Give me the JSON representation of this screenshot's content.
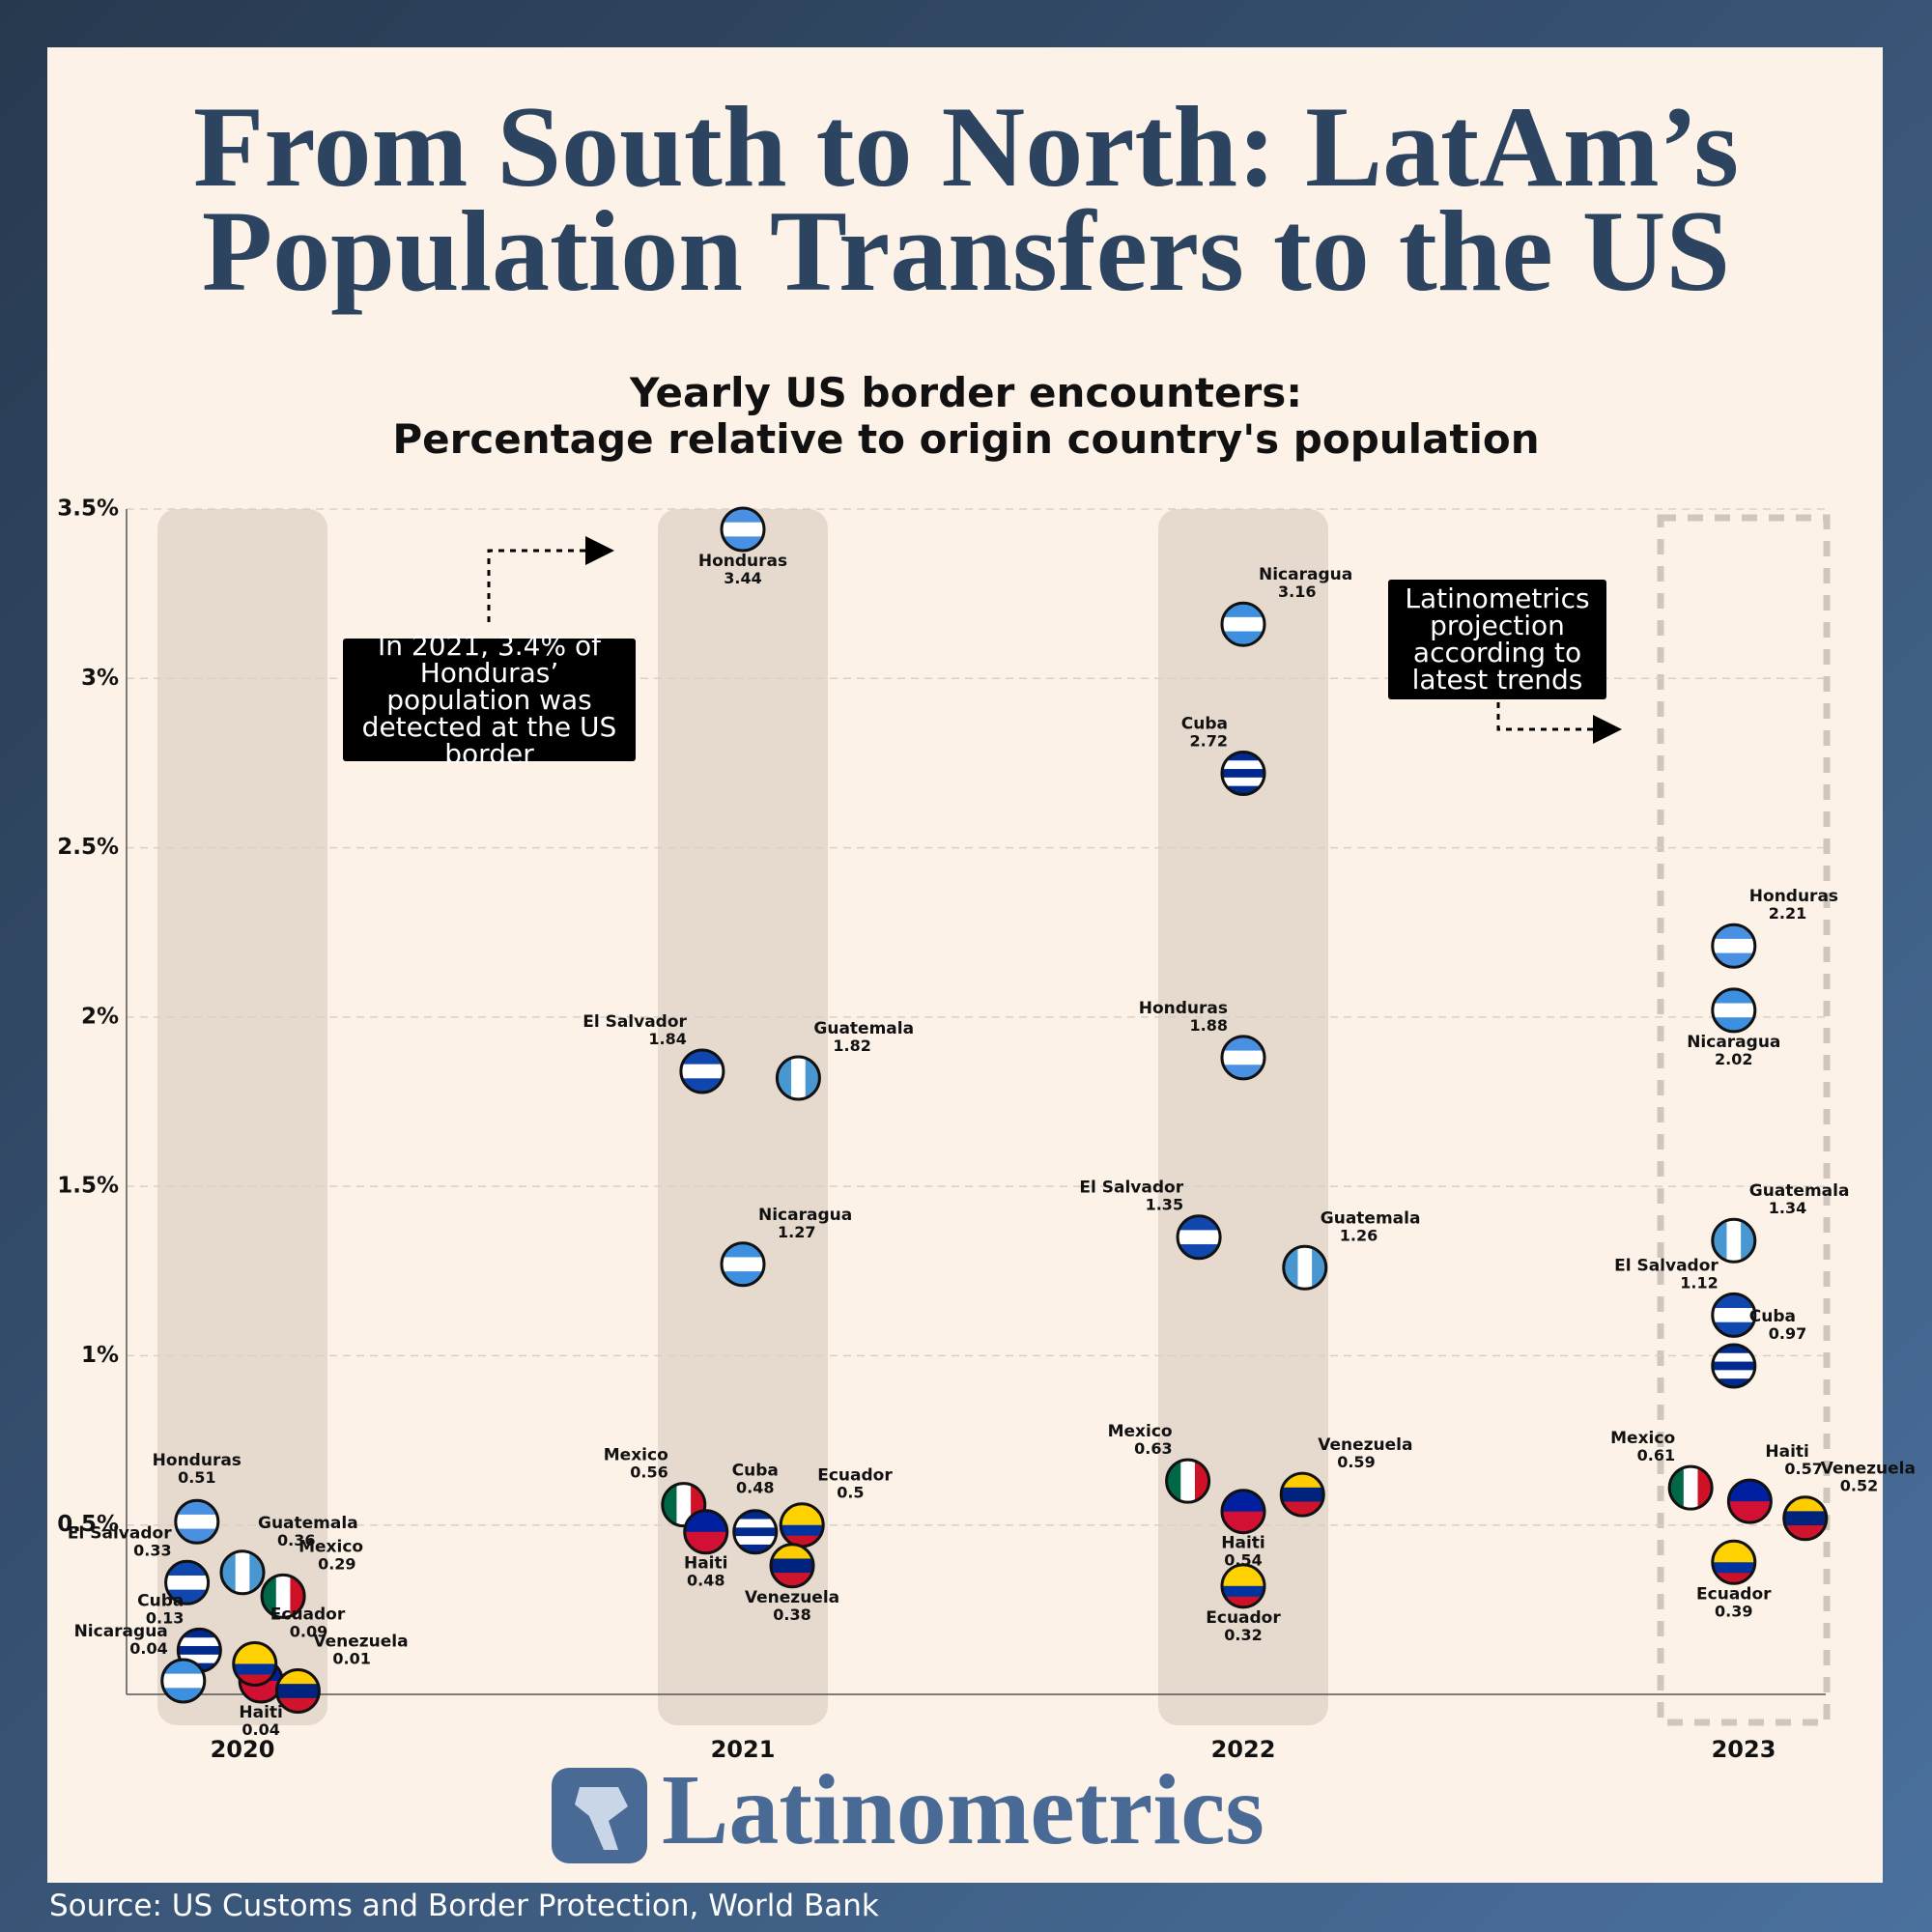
{
  "chart_data": {
    "type": "dotplot",
    "title": [
      "From South to North: LatAm’s",
      "Population Transfers to the US"
    ],
    "subtitle": [
      "Yearly US border encounters:",
      "Percentage relative to origin country's population"
    ],
    "categories": [
      "2020",
      "2021",
      "2022",
      "2023"
    ],
    "series": [
      {
        "name": "Honduras",
        "colors": [
          "#4a90e2",
          "#ffffff",
          "#4a90e2"
        ],
        "stripes": "horizontal",
        "values": [
          0.51,
          3.44,
          1.88,
          2.21
        ]
      },
      {
        "name": "Guatemala",
        "colors": [
          "#4997d0",
          "#ffffff",
          "#4997d0"
        ],
        "stripes": "vertical",
        "values": [
          0.36,
          1.82,
          1.26,
          1.34
        ]
      },
      {
        "name": "El Salvador",
        "colors": [
          "#0f47af",
          "#ffffff",
          "#0f47af"
        ],
        "stripes": "horizontal",
        "values": [
          0.33,
          1.84,
          1.35,
          1.12
        ]
      },
      {
        "name": "Mexico",
        "colors": [
          "#006847",
          "#ffffff",
          "#ce1126"
        ],
        "stripes": "vertical",
        "values": [
          0.29,
          0.56,
          0.63,
          0.61
        ]
      },
      {
        "name": "Cuba",
        "colors": [
          "#002a8f",
          "#ffffff",
          "#002a8f",
          "#ffffff",
          "#002a8f"
        ],
        "stripes": "horizontal",
        "values": [
          0.13,
          0.48,
          2.72,
          0.97
        ]
      },
      {
        "name": "Nicaragua",
        "colors": [
          "#3d8fe0",
          "#ffffff",
          "#3d8fe0"
        ],
        "stripes": "horizontal",
        "values": [
          0.04,
          1.27,
          3.16,
          2.02
        ]
      },
      {
        "name": "Haiti",
        "colors": [
          "#00209f",
          "#d21034"
        ],
        "stripes": "horizontal",
        "values": [
          0.04,
          0.48,
          0.54,
          0.57
        ]
      },
      {
        "name": "Ecuador",
        "colors": [
          "#ffd100",
          "#ffd100",
          "#0033a0",
          "#ce1126"
        ],
        "stripes": "horizontal",
        "values": [
          0.09,
          0.5,
          0.32,
          0.39
        ]
      },
      {
        "name": "Venezuela",
        "colors": [
          "#ffcc00",
          "#00247d",
          "#cf142b"
        ],
        "stripes": "horizontal",
        "values": [
          0.01,
          0.38,
          0.59,
          0.52
        ]
      }
    ],
    "ylim": [
      0,
      3.5
    ],
    "yticks": [
      {
        "value": 0.5,
        "label": "0.5%"
      },
      {
        "value": 1,
        "label": "1%"
      },
      {
        "value": 1.5,
        "label": "1.5%"
      },
      {
        "value": 2,
        "label": "2%"
      },
      {
        "value": 2.5,
        "label": "2.5%"
      },
      {
        "value": 3,
        "label": "3%"
      },
      {
        "value": 3.5,
        "label": "3.5%"
      }
    ],
    "grid": true,
    "annotations": [
      "In 2021, 3.4% of Honduras’ population was detected at the US border",
      "Latinometrics projection according to latest trends"
    ],
    "logo": "Latinometrics",
    "source": "Source: US Customs and Border Protection, World Bank"
  }
}
